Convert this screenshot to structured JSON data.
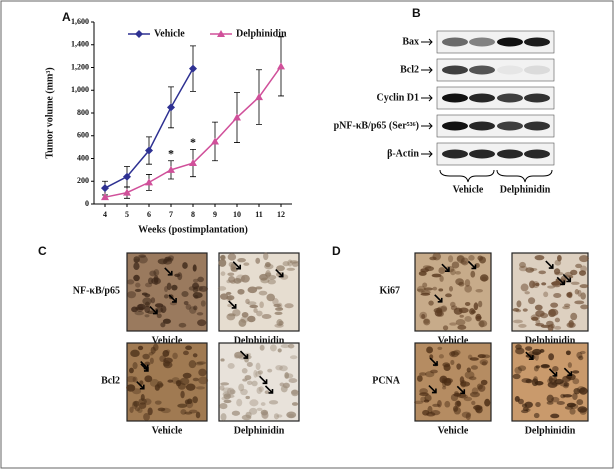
{
  "panels": {
    "a": "A",
    "b": "B",
    "c": "C",
    "d": "D"
  },
  "chart_data": {
    "type": "line",
    "x_label": "Weeks (postimplantation)",
    "y_label": "Tumor volume (mm³)",
    "xlim": [
      3.5,
      12.5
    ],
    "xticks": [
      4,
      5,
      6,
      7,
      8,
      9,
      10,
      11,
      12
    ],
    "ylim": [
      0,
      1600
    ],
    "yticks": [
      0,
      200,
      400,
      600,
      800,
      {
        "value": 1000,
        "label": "1,000"
      },
      {
        "value": 1200,
        "label": "1,200"
      },
      {
        "value": 1400,
        "label": "1,400"
      },
      {
        "value": 1600,
        "label": "1,600"
      }
    ],
    "series": [
      {
        "name": "Vehicle",
        "color": "#2e3192",
        "marker": "diamond",
        "x": [
          4,
          5,
          6,
          7,
          8
        ],
        "values": [
          140,
          240,
          470,
          850,
          1190
        ],
        "errors": [
          60,
          90,
          120,
          180,
          200
        ]
      },
      {
        "name": "Delphinidin",
        "color": "#d0509a",
        "marker": "triangle",
        "x": [
          4,
          5,
          6,
          7,
          8,
          9,
          10,
          11,
          12
        ],
        "values": [
          60,
          100,
          190,
          300,
          360,
          550,
          760,
          940,
          1210
        ],
        "errors": [
          20,
          50,
          70,
          80,
          120,
          170,
          220,
          240,
          260
        ]
      }
    ],
    "annotations": [
      {
        "text": "*",
        "x": 7
      },
      {
        "text": "*",
        "x": 8
      }
    ]
  },
  "blot": {
    "rows": [
      "Bax",
      "Bcl2",
      "Cyclin D1",
      "pNF-κB/p65 (Ser⁵³⁶)",
      "β-Actin"
    ],
    "groups": [
      "Vehicle",
      "Delphinidin"
    ]
  },
  "panel_c": {
    "rows": [
      "NF-κB/p65",
      "Bcl2"
    ],
    "columns": [
      "Vehicle",
      "Delphinidin"
    ]
  },
  "panel_d": {
    "rows": [
      "Ki67",
      "PCNA"
    ],
    "columns": [
      "Vehicle",
      "Delphinidin"
    ]
  }
}
